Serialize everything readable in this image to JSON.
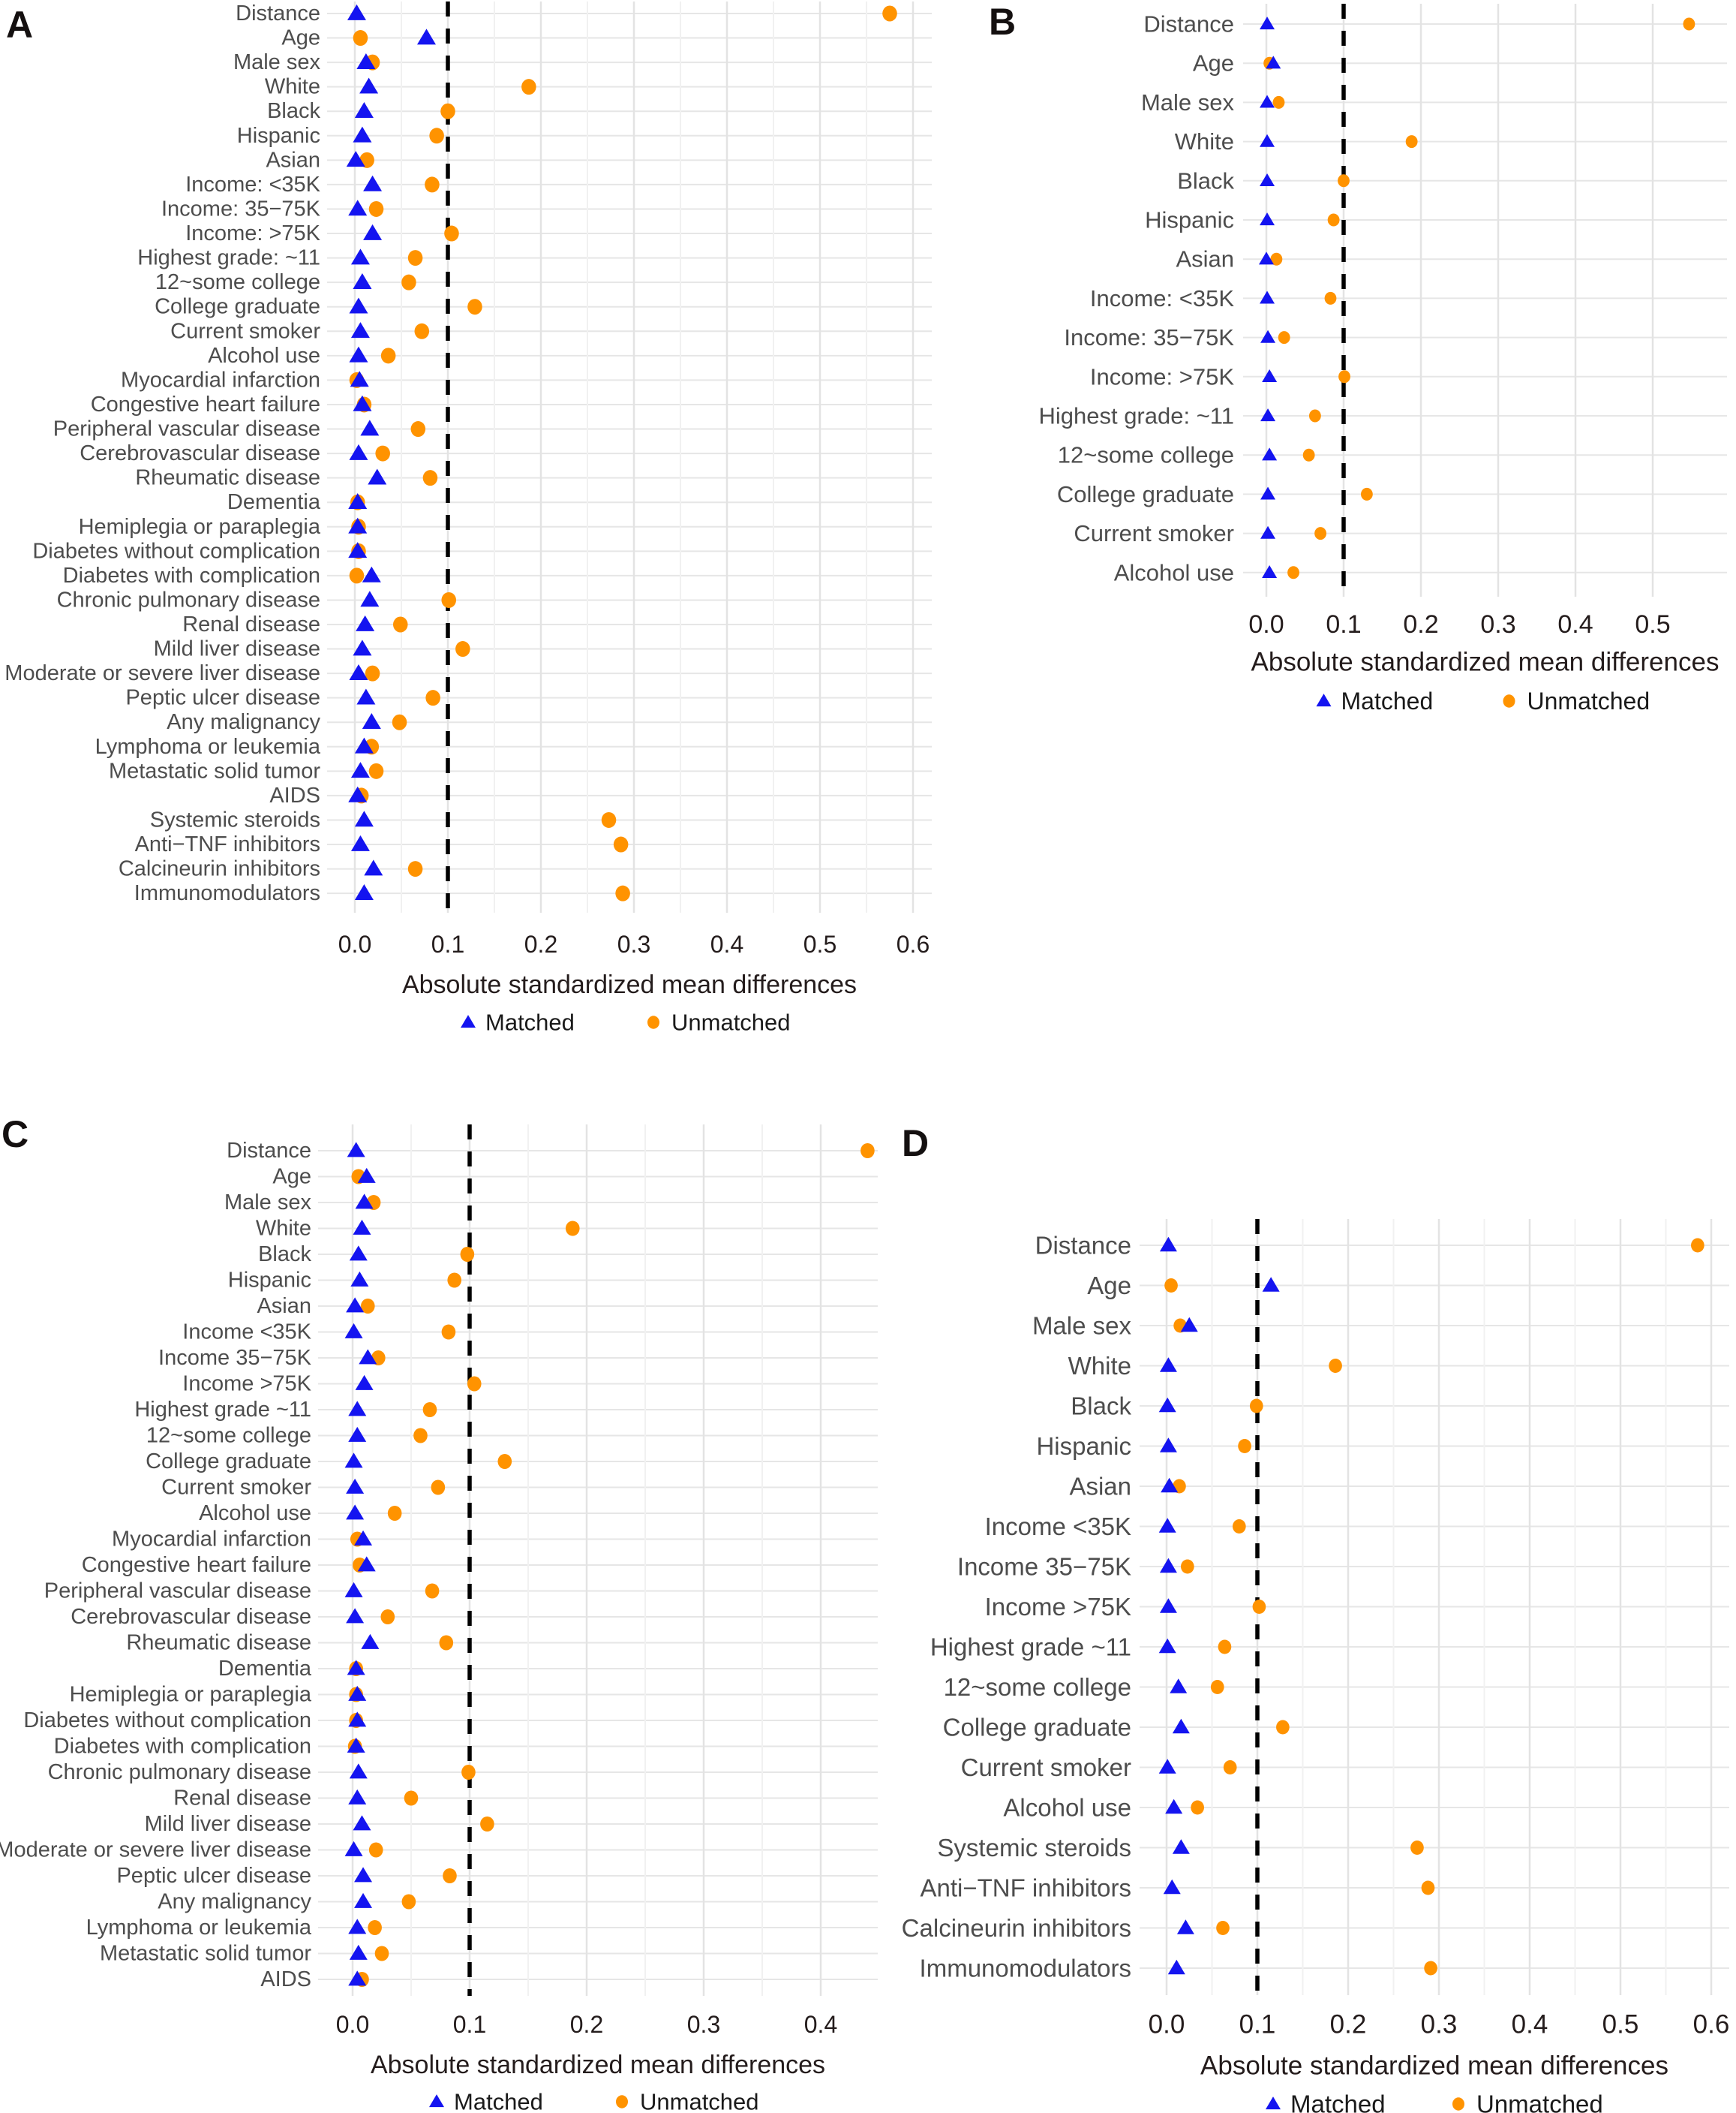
{
  "figure": {
    "panels": [
      "A",
      "B",
      "C",
      "D"
    ],
    "axis_label": "Absolute standardized mean differences",
    "legend": {
      "matched_label": "Matched",
      "unmatched_label": "Unmatched"
    },
    "threshold": 0.1,
    "colors": {
      "matched": "#1414F0",
      "unmatched": "#FF9300",
      "threshold_line": "#000000",
      "grid_major": "#E3E3E3",
      "grid_minor": "#F1F1F1",
      "row_line": "#E6E6E6",
      "row_label_text": "#4D4D4D",
      "tick_text": "#241C1C",
      "title_text": "#241C1C",
      "legend_text": "#1A1A1A",
      "background": "#FFFFFF"
    }
  },
  "chart_data": [
    {
      "type": "scatter",
      "panel_label": "A",
      "xlabel": "Absolute standardized mean differences",
      "x_ticks": [
        "0.0",
        "0.1",
        "0.2",
        "0.3",
        "0.4",
        "0.5",
        "0.6"
      ],
      "x_tick_values": [
        0,
        0.1,
        0.2,
        0.3,
        0.4,
        0.5,
        0.6
      ],
      "xlim": [
        -0.03,
        0.62
      ],
      "threshold": 0.1,
      "grid": "major+minor",
      "legend_position": "bottom",
      "categories": [
        "Distance",
        "Age",
        "Male sex",
        "White",
        "Black",
        "Hispanic",
        "Asian",
        "Income: <35K",
        "Income: 35−75K",
        "Income: >75K",
        "Highest grade: ~11",
        "12~some college",
        "College graduate",
        "Current smoker",
        "Alcohol use",
        "Myocardial infarction",
        "Congestive heart failure",
        "Peripheral vascular disease",
        "Cerebrovascular disease",
        "Rheumatic disease",
        "Dementia",
        "Hemiplegia or paraplegia",
        "Diabetes without complication",
        "Diabetes with complication",
        "Chronic pulmonary disease",
        "Renal disease",
        "Mild liver disease",
        "Moderate or severe liver disease",
        "Peptic ulcer disease",
        "Any malignancy",
        "Lymphoma or leukemia",
        "Metastatic solid tumor",
        "AIDS",
        "Systemic steroids",
        "Anti−TNF inhibitors",
        "Calcineurin inhibitors",
        "Immunomodulators"
      ],
      "series": [
        {
          "name": "Matched",
          "marker": "triangle",
          "values": [
            0.002,
            0.077,
            0.012,
            0.015,
            0.01,
            0.008,
            0.001,
            0.019,
            0.003,
            0.019,
            0.006,
            0.008,
            0.004,
            0.006,
            0.004,
            0.005,
            0.008,
            0.016,
            0.004,
            0.024,
            0.003,
            0.003,
            0.003,
            0.018,
            0.016,
            0.011,
            0.008,
            0.004,
            0.012,
            0.018,
            0.01,
            0.006,
            0.003,
            0.01,
            0.006,
            0.02,
            0.01
          ]
        },
        {
          "name": "Unmatched",
          "marker": "circle",
          "values": [
            0.575,
            0.006,
            0.019,
            0.187,
            0.1,
            0.088,
            0.013,
            0.083,
            0.023,
            0.104,
            0.065,
            0.058,
            0.129,
            0.072,
            0.036,
            0.002,
            0.01,
            0.068,
            0.03,
            0.081,
            0.003,
            0.004,
            0.004,
            0.002,
            0.101,
            0.049,
            0.116,
            0.019,
            0.084,
            0.048,
            0.018,
            0.023,
            0.007,
            0.273,
            0.286,
            0.065,
            0.288
          ]
        }
      ]
    },
    {
      "type": "scatter",
      "panel_label": "B",
      "xlabel": "Absolute standardized mean differences",
      "x_ticks": [
        "0.0",
        "0.1",
        "0.2",
        "0.3",
        "0.4",
        "0.5"
      ],
      "x_tick_values": [
        0,
        0.1,
        0.2,
        0.3,
        0.4,
        0.5
      ],
      "xlim": [
        -0.03,
        0.595
      ],
      "threshold": 0.1,
      "grid": "major",
      "legend_position": "bottom",
      "categories": [
        "Distance",
        "Age",
        "Male sex",
        "White",
        "Black",
        "Hispanic",
        "Asian",
        "Income: <35K",
        "Income: 35−75K",
        "Income: >75K",
        "Highest grade: ~11",
        "12~some college",
        "College graduate",
        "Current smoker",
        "Alcohol use"
      ],
      "series": [
        {
          "name": "Matched",
          "marker": "triangle",
          "values": [
            0.001,
            0.009,
            0.001,
            0.001,
            0.001,
            0.001,
            0.0,
            0.001,
            0.002,
            0.004,
            0.002,
            0.004,
            0.002,
            0.002,
            0.004
          ]
        },
        {
          "name": "Unmatched",
          "marker": "circle",
          "values": [
            0.547,
            0.004,
            0.016,
            0.188,
            0.1,
            0.087,
            0.013,
            0.083,
            0.023,
            0.101,
            0.063,
            0.055,
            0.13,
            0.07,
            0.035
          ]
        }
      ]
    },
    {
      "type": "scatter",
      "panel_label": "C",
      "xlabel": "Absolute standardized mean differences",
      "x_ticks": [
        "0.0",
        "0.1",
        "0.2",
        "0.3",
        "0.4"
      ],
      "x_tick_values": [
        0,
        0.1,
        0.2,
        0.3,
        0.4
      ],
      "xlim": [
        -0.03,
        0.449
      ],
      "threshold": 0.1,
      "grid": "major+minor",
      "legend_position": "bottom",
      "categories": [
        "Distance",
        "Age",
        "Male sex",
        "White",
        "Black",
        "Hispanic",
        "Asian",
        "Income <35K",
        "Income 35−75K",
        "Income >75K",
        "Highest grade ~11",
        "12~some college",
        "College graduate",
        "Current smoker",
        "Alcohol use",
        "Myocardial infarction",
        "Congestive heart failure",
        "Peripheral vascular disease",
        "Cerebrovascular disease",
        "Rheumatic disease",
        "Dementia",
        "Hemiplegia or paraplegia",
        "Diabetes without complication",
        "Diabetes with complication",
        "Chronic pulmonary disease",
        "Renal disease",
        "Mild liver disease",
        "Moderate or severe liver disease",
        "Peptic ulcer disease",
        "Any malignancy",
        "Lymphoma or leukemia",
        "Metastatic solid tumor",
        "AIDS"
      ],
      "series": [
        {
          "name": "Matched",
          "marker": "triangle",
          "values": [
            0.003,
            0.012,
            0.01,
            0.008,
            0.005,
            0.006,
            0.002,
            0.001,
            0.013,
            0.01,
            0.004,
            0.004,
            0.001,
            0.002,
            0.002,
            0.009,
            0.012,
            0.001,
            0.002,
            0.015,
            0.003,
            0.004,
            0.004,
            0.003,
            0.005,
            0.004,
            0.008,
            0.001,
            0.009,
            0.009,
            0.004,
            0.005,
            0.004
          ]
        },
        {
          "name": "Unmatched",
          "marker": "circle",
          "values": [
            0.44,
            0.005,
            0.018,
            0.188,
            0.098,
            0.087,
            0.013,
            0.082,
            0.022,
            0.104,
            0.066,
            0.058,
            0.13,
            0.073,
            0.036,
            0.004,
            0.006,
            0.068,
            0.03,
            0.08,
            0.003,
            0.003,
            0.003,
            0.002,
            0.099,
            0.05,
            0.115,
            0.02,
            0.083,
            0.048,
            0.019,
            0.025,
            0.008
          ]
        }
      ]
    },
    {
      "type": "scatter",
      "panel_label": "D",
      "xlabel": "Absolute standardized mean differences",
      "x_ticks": [
        "0.0",
        "0.1",
        "0.2",
        "0.3",
        "0.4",
        "0.5",
        "0.6"
      ],
      "x_tick_values": [
        0,
        0.1,
        0.2,
        0.3,
        0.4,
        0.5,
        0.6
      ],
      "xlim": [
        -0.028,
        0.62
      ],
      "threshold": 0.1,
      "grid": "major+minor",
      "legend_position": "bottom",
      "categories": [
        "Distance",
        "Age",
        "Male sex",
        "White",
        "Black",
        "Hispanic",
        "Asian",
        "Income <35K",
        "Income 35−75K",
        "Income >75K",
        "Highest grade ~11",
        "12~some college",
        "College graduate",
        "Current smoker",
        "Alcohol use",
        "Systemic steroids",
        "Anti−TNF inhibitors",
        "Calcineurin inhibitors",
        "Immunomodulators"
      ],
      "series": [
        {
          "name": "Matched",
          "marker": "triangle",
          "values": [
            0.002,
            0.115,
            0.025,
            0.002,
            0.001,
            0.002,
            0.003,
            0.001,
            0.002,
            0.002,
            0.001,
            0.013,
            0.016,
            0.001,
            0.008,
            0.016,
            0.006,
            0.021,
            0.011
          ]
        },
        {
          "name": "Unmatched",
          "marker": "circle",
          "values": [
            0.585,
            0.005,
            0.015,
            0.186,
            0.099,
            0.086,
            0.014,
            0.08,
            0.023,
            0.102,
            0.064,
            0.056,
            0.128,
            0.07,
            0.034,
            0.276,
            0.288,
            0.062,
            0.291
          ]
        }
      ]
    }
  ]
}
